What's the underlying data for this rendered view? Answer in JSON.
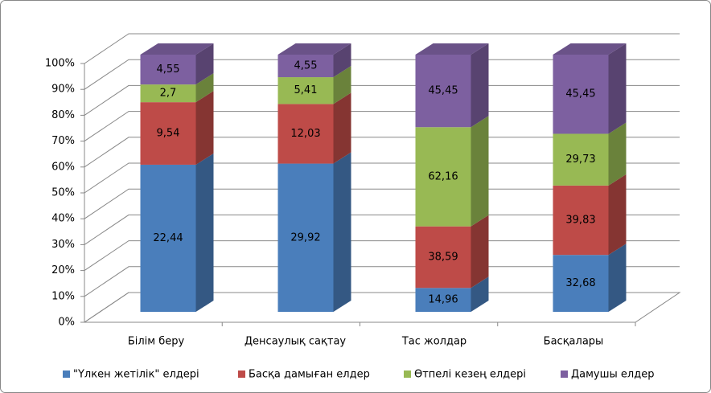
{
  "chart_data": {
    "type": "bar",
    "stacking": "percent",
    "three_d": true,
    "categories": [
      "Білім беру",
      "Денсаулық сақтау",
      "Тас жолдар",
      "Басқалары"
    ],
    "series": [
      {
        "name": "\"Үлкен жетілік\" елдері",
        "color": "#4a7ebb",
        "values": [
          22.44,
          29.92,
          14.96,
          32.68
        ],
        "value_labels": [
          "22,44",
          "29,92",
          "14,96",
          "32,68"
        ]
      },
      {
        "name": "Басқа дамыған елдер",
        "color": "#be4b48",
        "values": [
          9.54,
          12.03,
          38.59,
          39.83
        ],
        "value_labels": [
          "9,54",
          "12,03",
          "38,59",
          "39,83"
        ]
      },
      {
        "name": "Өтпелі кезең елдері",
        "color": "#98b954",
        "values": [
          2.7,
          5.41,
          62.16,
          29.73
        ],
        "value_labels": [
          "2,7",
          "5,41",
          "62,16",
          "29,73"
        ]
      },
      {
        "name": "Дамушы елдер",
        "color": "#7d60a0",
        "values": [
          4.55,
          4.55,
          45.45,
          45.45
        ],
        "value_labels": [
          "4,55",
          "4,55",
          "45,45",
          "45,45"
        ]
      }
    ],
    "ylim": [
      0,
      100
    ],
    "yticks": [
      {
        "value": 0,
        "label": "0%"
      },
      {
        "value": 10,
        "label": "10%"
      },
      {
        "value": 20,
        "label": "20%"
      },
      {
        "value": 30,
        "label": "30%"
      },
      {
        "value": 40,
        "label": "40%"
      },
      {
        "value": 50,
        "label": "50%"
      },
      {
        "value": 60,
        "label": "60%"
      },
      {
        "value": 70,
        "label": "70%"
      },
      {
        "value": 80,
        "label": "80%"
      },
      {
        "value": 90,
        "label": "90%"
      },
      {
        "value": 100,
        "label": "100%"
      }
    ],
    "grid": true,
    "legend": "bottom"
  }
}
